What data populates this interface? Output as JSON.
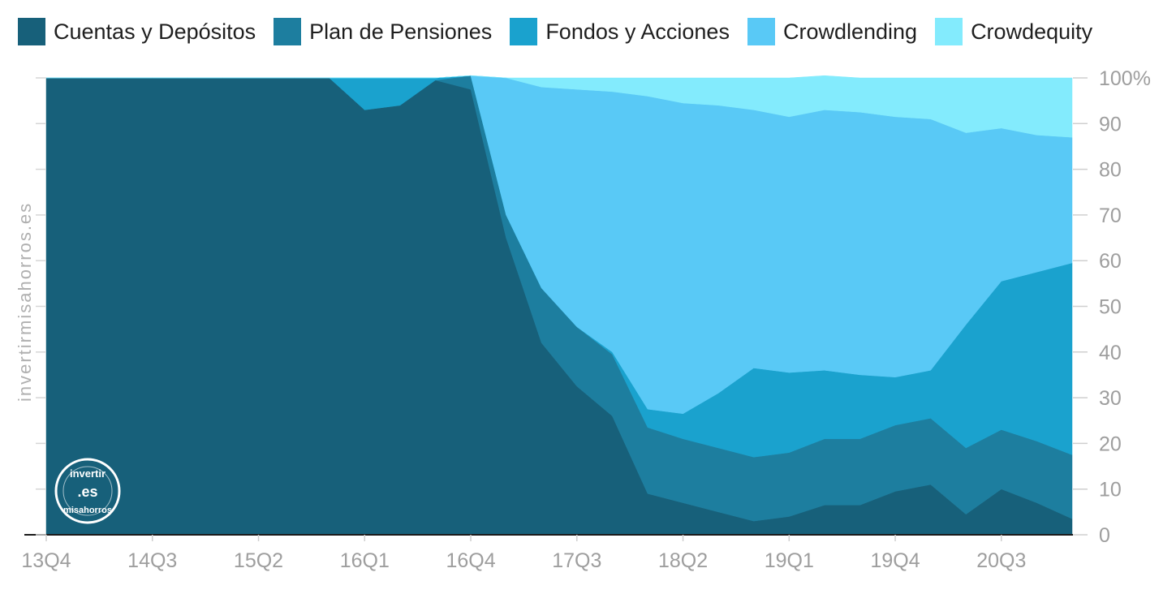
{
  "legend": {
    "items": [
      {
        "label": "Cuentas y Depósitos",
        "color": "#17607a"
      },
      {
        "label": "Plan de Pensiones",
        "color": "#1d7e9f"
      },
      {
        "label": "Fondos y Acciones",
        "color": "#1aa2ce"
      },
      {
        "label": "Crowdlending",
        "color": "#59c9f6"
      },
      {
        "label": "Crowdequity",
        "color": "#83ebfd"
      }
    ]
  },
  "watermark": "invertirmisahorros.es",
  "logo": {
    "top": "invertir",
    "middle": ".es",
    "bottom": "misahorros"
  },
  "chart_data": {
    "type": "area",
    "stacked": true,
    "normalized_percent": true,
    "x": [
      "13Q4",
      "14Q1",
      "14Q2",
      "14Q3",
      "14Q4",
      "15Q1",
      "15Q2",
      "15Q3",
      "15Q4",
      "16Q1",
      "16Q2",
      "16Q3",
      "16Q4",
      "17Q1",
      "17Q2",
      "17Q3",
      "17Q4",
      "18Q1",
      "18Q2",
      "18Q3",
      "18Q4",
      "19Q1",
      "19Q2",
      "19Q3",
      "19Q4",
      "20Q1",
      "20Q2",
      "20Q3",
      "20Q4",
      "21Q1"
    ],
    "x_tick_labels": [
      "13Q4",
      "14Q3",
      "15Q2",
      "16Q1",
      "16Q4",
      "17Q3",
      "18Q2",
      "19Q1",
      "19Q4",
      "20Q3"
    ],
    "y_tick_labels": [
      "0",
      "10",
      "20",
      "30",
      "40",
      "50",
      "60",
      "70",
      "80",
      "90",
      "100%"
    ],
    "ylim": [
      0,
      100
    ],
    "y_axis_position": "right",
    "grid": false,
    "legend_position": "top",
    "series": [
      {
        "name": "Cuentas y Depósitos",
        "color": "#17607a",
        "values": [
          100,
          100,
          100,
          100,
          100,
          100,
          100,
          100,
          100,
          93,
          94,
          99.5,
          97.5,
          65,
          42,
          32.5,
          26,
          9,
          7,
          5,
          3,
          4,
          6.5,
          6.5,
          9.5,
          11,
          4.5,
          10,
          7,
          3.5
        ]
      },
      {
        "name": "Plan de Pensiones",
        "color": "#1d7e9f",
        "values": [
          0,
          0,
          0,
          0,
          0,
          0,
          0,
          0,
          0,
          0,
          0,
          0,
          3,
          5,
          12,
          13,
          13.5,
          14.5,
          14,
          14,
          14,
          14,
          14.5,
          14.5,
          14.5,
          14.5,
          14.5,
          13,
          13.5,
          14
        ]
      },
      {
        "name": "Fondos y Acciones",
        "color": "#1aa2ce",
        "values": [
          0,
          0,
          0,
          0,
          0,
          0,
          0,
          0,
          0,
          7,
          6,
          0.5,
          0,
          0,
          0,
          0,
          0.5,
          4,
          5.5,
          12,
          19.5,
          17.5,
          15,
          14,
          10.5,
          10.5,
          27,
          32.5,
          37,
          42
        ]
      },
      {
        "name": "Crowdlending",
        "color": "#59c9f6",
        "values": [
          0,
          0,
          0,
          0,
          0,
          0,
          0,
          0,
          0,
          0,
          0,
          0,
          0,
          30,
          44,
          52,
          57,
          68.5,
          68,
          63,
          56.5,
          56,
          57,
          57.5,
          57,
          55,
          42,
          33.5,
          30,
          27.5
        ]
      },
      {
        "name": "Crowdequity",
        "color": "#83ebfd",
        "values": [
          0,
          0,
          0,
          0,
          0,
          0,
          0,
          0,
          0,
          0,
          0,
          0,
          0,
          0,
          2,
          2.5,
          3,
          4,
          5.5,
          6,
          7,
          8.5,
          7.5,
          7.5,
          8.5,
          9,
          12,
          11,
          12.5,
          13
        ]
      }
    ]
  }
}
